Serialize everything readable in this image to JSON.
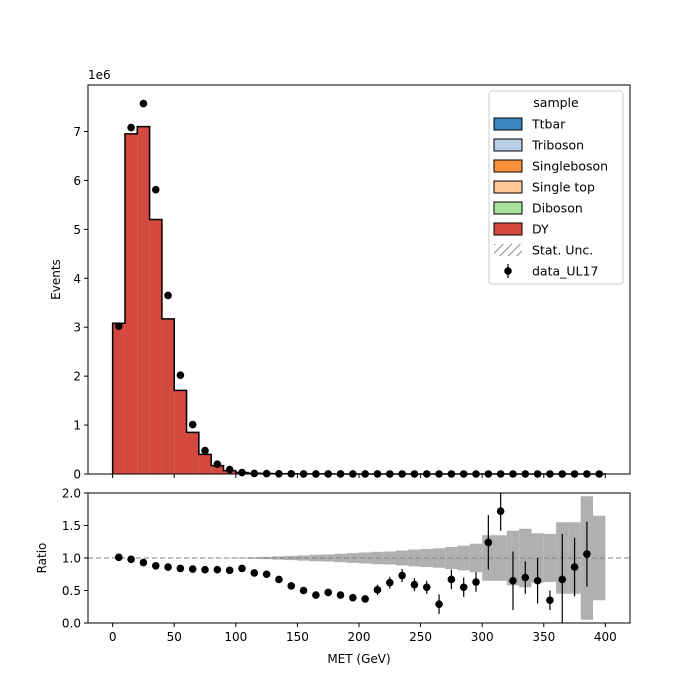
{
  "chart_data": [
    {
      "type": "bar",
      "panel": "main",
      "ylabel": "Events",
      "y_exponent_label": "1e6",
      "xlim": [
        -20,
        420
      ],
      "ylim": [
        0,
        7.95
      ],
      "y_scale_factor": 1000000,
      "x_ticks": [
        0,
        50,
        100,
        150,
        200,
        250,
        300,
        350,
        400
      ],
      "y_ticks": [
        0,
        1,
        2,
        3,
        4,
        5,
        6,
        7
      ],
      "y_tick_labels": [
        "0",
        "1",
        "2",
        "3",
        "4",
        "5",
        "6",
        "7"
      ],
      "bin_edges": [
        0,
        10,
        20,
        30,
        40,
        50,
        60,
        70,
        80,
        90,
        100,
        110,
        120,
        130,
        140,
        150,
        160,
        170,
        180,
        190,
        200,
        210,
        220,
        230,
        240,
        250,
        260,
        270,
        280,
        290,
        300,
        310,
        320,
        330,
        340,
        350,
        360,
        370,
        380,
        390,
        400
      ],
      "series": [
        {
          "name": "Ttbar",
          "color": "#3b85c0",
          "values": [
            0,
            0,
            0,
            0,
            0,
            0,
            0,
            0,
            0,
            0,
            0,
            0,
            0,
            0,
            0,
            0,
            0,
            0,
            0,
            0,
            0,
            0,
            0,
            0,
            0,
            0,
            0,
            0,
            0,
            0,
            0,
            0,
            0,
            0,
            0,
            0,
            0,
            0,
            0,
            0
          ]
        },
        {
          "name": "Triboson",
          "color": "#b9cde5",
          "values": [
            0,
            0,
            0,
            0,
            0,
            0,
            0,
            0,
            0,
            0,
            0,
            0,
            0,
            0,
            0,
            0,
            0,
            0,
            0,
            0,
            0,
            0,
            0,
            0,
            0,
            0,
            0,
            0,
            0,
            0,
            0,
            0,
            0,
            0,
            0,
            0,
            0,
            0,
            0,
            0
          ]
        },
        {
          "name": "Singleboson",
          "color": "#f7923a",
          "values": [
            0,
            0,
            0,
            0,
            0,
            0,
            0,
            0,
            0,
            0,
            0,
            0,
            0,
            0,
            0,
            0,
            0,
            0,
            0,
            0,
            0,
            0,
            0,
            0,
            0,
            0,
            0,
            0,
            0,
            0,
            0,
            0,
            0,
            0,
            0,
            0,
            0,
            0,
            0,
            0
          ]
        },
        {
          "name": "Single top",
          "color": "#ffc896",
          "values": [
            0,
            0,
            0,
            0,
            0,
            0,
            0,
            0,
            0,
            0,
            0,
            0,
            0,
            0,
            0,
            0,
            0,
            0,
            0,
            0,
            0,
            0,
            0,
            0,
            0,
            0,
            0,
            0,
            0,
            0,
            0,
            0,
            0,
            0,
            0,
            0,
            0,
            0,
            0,
            0
          ]
        },
        {
          "name": "Diboson",
          "color": "#a9df98",
          "values": [
            0,
            0,
            0,
            0,
            0,
            0,
            0,
            0,
            0,
            0,
            0,
            0,
            0,
            0,
            0,
            0,
            0,
            0,
            0,
            0,
            0,
            0,
            0,
            0,
            0,
            0,
            0,
            0,
            0,
            0,
            0,
            0,
            0,
            0,
            0,
            0,
            0,
            0,
            0,
            0
          ]
        },
        {
          "name": "DY",
          "color": "#d4493f",
          "values": [
            3.08,
            6.95,
            7.1,
            5.2,
            3.17,
            1.71,
            0.85,
            0.4,
            0.17,
            0.07,
            0.03,
            0.015,
            0.01,
            0.006,
            0.004,
            0.003,
            0.002,
            0.0015,
            0.001,
            0.0008,
            0.0006,
            0.0005,
            0.0004,
            0.0003,
            0.0002,
            0.0002,
            0.0001,
            0.0001,
            0.0001,
            0.0001,
            0.0001,
            0.0001,
            0.0001,
            0.0001,
            0.0001,
            0.0001,
            0.0001,
            0.0001,
            0.0001,
            0.0001
          ]
        }
      ],
      "data": {
        "name": "data_UL17",
        "x": [
          5,
          15,
          25,
          35,
          45,
          55,
          65,
          75,
          85,
          95,
          105,
          115,
          125,
          135,
          145,
          155,
          165,
          175,
          185,
          195,
          205,
          215,
          225,
          235,
          245,
          255,
          265,
          275,
          285,
          295,
          305,
          315,
          325,
          335,
          345,
          355,
          365,
          375,
          385,
          395
        ],
        "values": [
          3.02,
          7.08,
          7.57,
          5.81,
          3.65,
          2.02,
          1.01,
          0.48,
          0.2,
          0.09,
          0.03,
          0.012,
          0.008,
          0.005,
          0.003,
          0.002,
          0.001,
          0.0008,
          0.0006,
          0.0004,
          0.0003,
          0.0003,
          0.0002,
          0.0002,
          0.0001,
          0.0001,
          0.0001,
          0.0001,
          0.0001,
          0.0001,
          0.0001,
          0.0001,
          0.0001,
          0.0001,
          0.0001,
          0.0001,
          0.0001,
          0.0001,
          0.0001,
          0.0001
        ]
      },
      "legend": {
        "title": "sample",
        "placement": "top-right",
        "entries": [
          "Ttbar",
          "Triboson",
          "Singleboson",
          "Single top",
          "Diboson",
          "DY",
          "Stat. Unc.",
          "data_UL17"
        ]
      }
    },
    {
      "type": "scatter",
      "panel": "ratio",
      "xlabel": "MET (GeV)",
      "ylabel": "Ratio",
      "xlim": [
        -20,
        420
      ],
      "ylim": [
        0,
        2
      ],
      "x_ticks": [
        0,
        50,
        100,
        150,
        200,
        250,
        300,
        350,
        400
      ],
      "x_tick_labels": [
        "0",
        "50",
        "100",
        "150",
        "200",
        "250",
        "300",
        "350",
        "400"
      ],
      "y_ticks": [
        0,
        0.5,
        1,
        1.5,
        2
      ],
      "y_tick_labels": [
        "0.0",
        "0.5",
        "1.0",
        "1.5",
        "2.0"
      ],
      "reference_line": 1,
      "x": [
        5,
        15,
        25,
        35,
        45,
        55,
        65,
        75,
        85,
        95,
        105,
        115,
        125,
        135,
        145,
        155,
        165,
        175,
        185,
        195,
        205,
        215,
        225,
        235,
        245,
        255,
        265,
        275,
        285,
        295,
        305,
        315,
        325,
        335,
        345,
        355,
        365,
        375,
        385
      ],
      "values": [
        1.01,
        0.98,
        0.93,
        0.88,
        0.86,
        0.84,
        0.83,
        0.82,
        0.82,
        0.81,
        0.84,
        0.77,
        0.75,
        0.67,
        0.57,
        0.5,
        0.43,
        0.47,
        0.43,
        0.39,
        0.37,
        0.51,
        0.62,
        0.73,
        0.59,
        0.55,
        0.29,
        0.67,
        0.55,
        0.63,
        1.24,
        1.72,
        0.65,
        0.7,
        0.65,
        0.35,
        0.67,
        0.86,
        1.06
      ],
      "errors": [
        0.005,
        0.005,
        0.005,
        0.005,
        0.005,
        0.005,
        0.005,
        0.005,
        0.005,
        0.01,
        0.01,
        0.01,
        0.01,
        0.01,
        0.01,
        0.01,
        0.02,
        0.02,
        0.03,
        0.03,
        0.05,
        0.08,
        0.09,
        0.1,
        0.1,
        0.1,
        0.15,
        0.15,
        0.15,
        0.15,
        0.42,
        0.3,
        0.45,
        0.25,
        0.35,
        0.15,
        0.7,
        0.45,
        0.5
      ],
      "stat_unc_band": [
        0.001,
        0.001,
        0.001,
        0.001,
        0.001,
        0.001,
        0.002,
        0.002,
        0.003,
        0.004,
        0.008,
        0.012,
        0.018,
        0.025,
        0.032,
        0.04,
        0.05,
        0.055,
        0.065,
        0.075,
        0.085,
        0.095,
        0.1,
        0.115,
        0.13,
        0.14,
        0.15,
        0.17,
        0.19,
        0.22,
        0.35,
        0.35,
        0.42,
        0.45,
        0.38,
        0.37,
        0.55,
        0.55,
        0.95,
        0.65
      ]
    }
  ]
}
